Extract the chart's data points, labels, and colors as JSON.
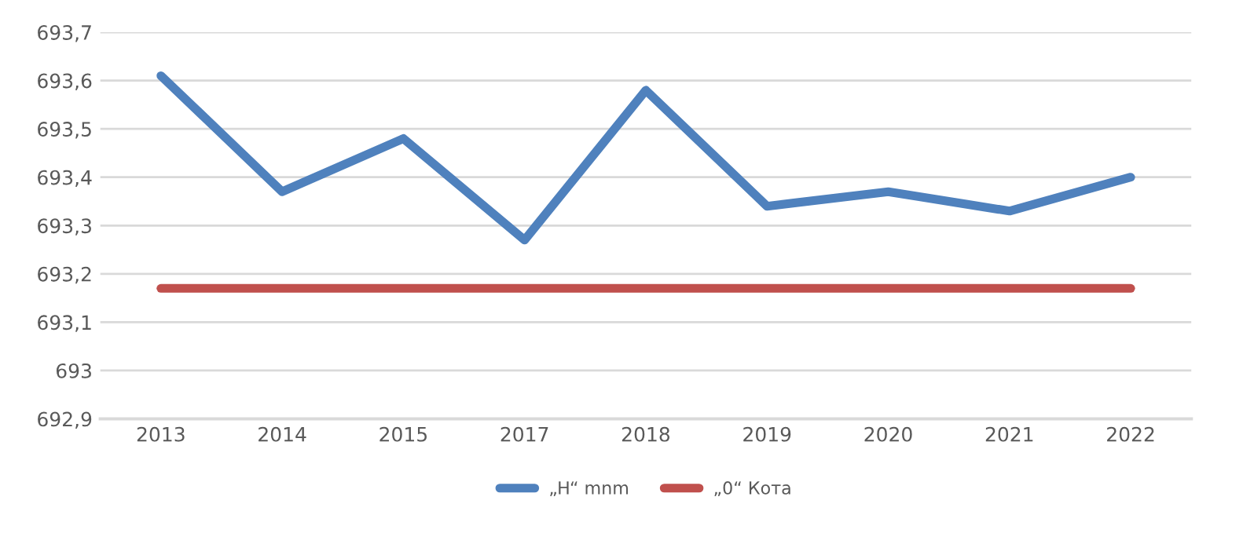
{
  "chart_data": {
    "type": "line",
    "categories": [
      "2013",
      "2014",
      "2015",
      "2017",
      "2018",
      "2019",
      "2020",
      "2021",
      "2022"
    ],
    "series": [
      {
        "name": "„H“ mnm",
        "color": "#4f81bd",
        "values": [
          693.61,
          693.37,
          693.48,
          693.27,
          693.58,
          693.34,
          693.37,
          693.33,
          693.4
        ]
      },
      {
        "name": "„0“ Кота",
        "color": "#c0504d",
        "values": [
          693.17,
          693.17,
          693.17,
          693.17,
          693.17,
          693.17,
          693.17,
          693.17,
          693.17
        ]
      }
    ],
    "ylim": [
      692.9,
      693.7
    ],
    "yticks": [
      {
        "value": 692.9,
        "label": "692,9"
      },
      {
        "value": 693.0,
        "label": "693"
      },
      {
        "value": 693.1,
        "label": "693,1"
      },
      {
        "value": 693.2,
        "label": "693,2"
      },
      {
        "value": 693.3,
        "label": "693,3"
      },
      {
        "value": 693.4,
        "label": "693,4"
      },
      {
        "value": 693.5,
        "label": "693,5"
      },
      {
        "value": 693.6,
        "label": "693,6"
      },
      {
        "value": 693.7,
        "label": "693,7"
      }
    ],
    "grid": "y",
    "legend": "bottom",
    "marker": "none",
    "line_style": "solid"
  }
}
